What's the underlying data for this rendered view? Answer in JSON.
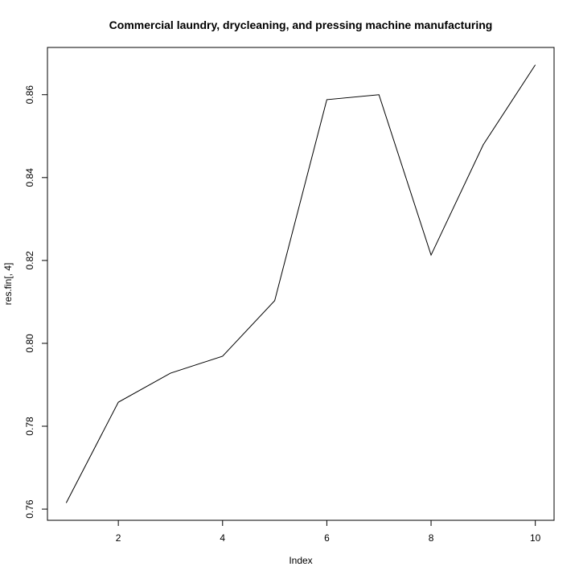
{
  "chart_data": {
    "type": "line",
    "title": "Commercial laundry, drycleaning, and pressing machine manufacturing",
    "xlabel": "Index",
    "ylabel": "res.fin[, 4]",
    "x": [
      1,
      2,
      3,
      4,
      5,
      6,
      7,
      8,
      9,
      10
    ],
    "series": [
      {
        "values": [
          0.7615,
          0.7858,
          0.7928,
          0.7969,
          0.8103,
          0.8588,
          0.86,
          0.8213,
          0.8479,
          0.8672
        ]
      }
    ],
    "x_ticks": [
      2,
      4,
      6,
      8,
      10
    ],
    "y_ticks": [
      0.76,
      0.78,
      0.8,
      0.82,
      0.84,
      0.86
    ],
    "x_tick_labels": [
      "2",
      "4",
      "6",
      "8",
      "10"
    ],
    "y_tick_labels": [
      "0.76",
      "0.78",
      "0.80",
      "0.82",
      "0.84",
      "0.86"
    ],
    "xlim": [
      0.64,
      10.36
    ],
    "ylim": [
      0.7573,
      0.8714
    ],
    "grid": false,
    "line_color": "#000000"
  }
}
